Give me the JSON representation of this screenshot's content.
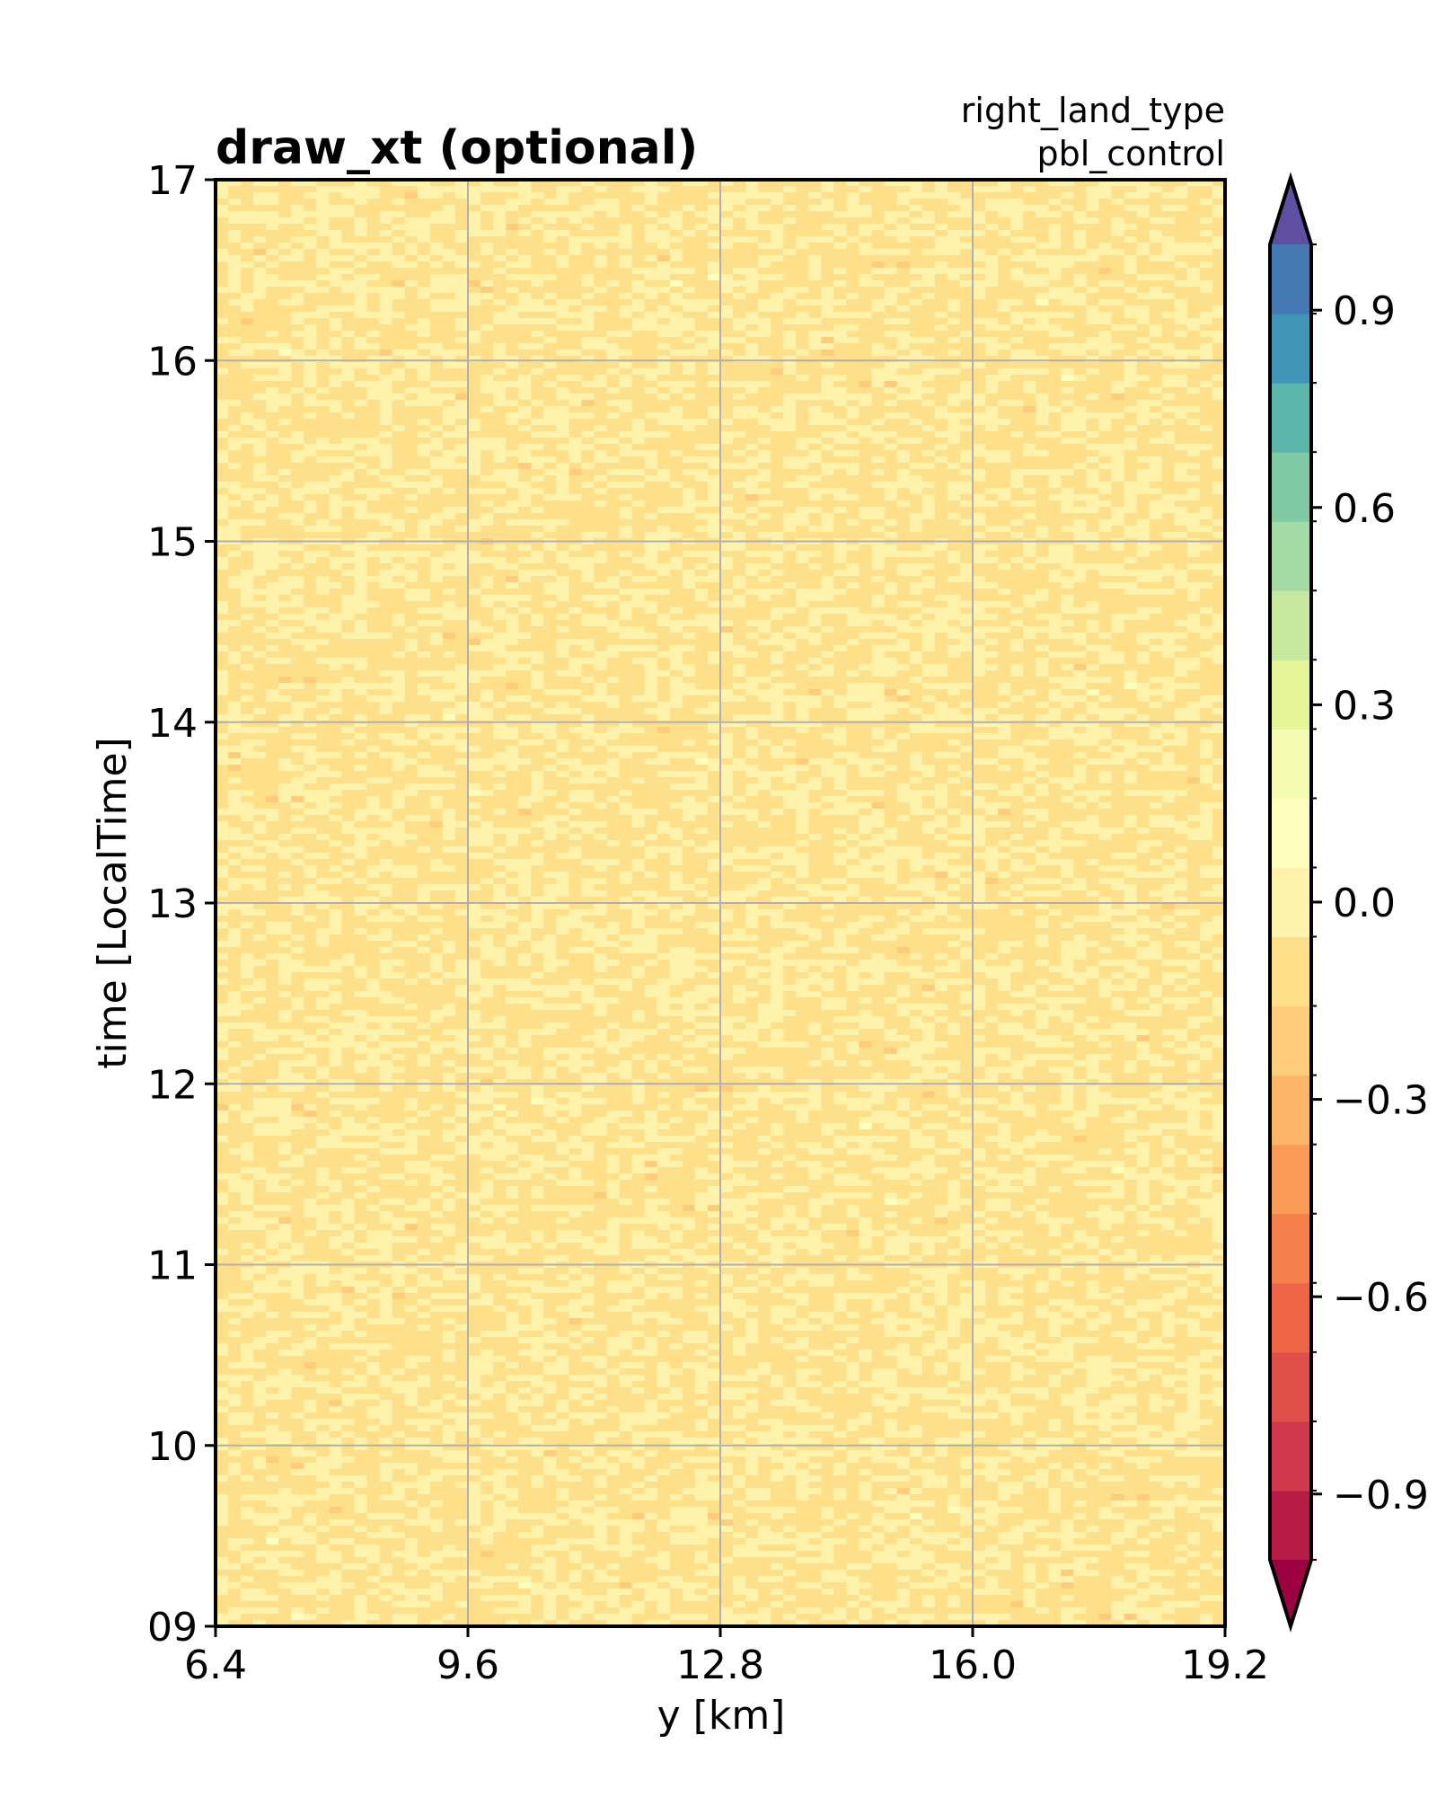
{
  "chart_data": {
    "type": "heatmap",
    "title": "draw_xt (optional)",
    "subtitle_lines": [
      "right_land_type",
      "pbl_control"
    ],
    "xlabel": "y [km]",
    "ylabel": "time [LocalTime]",
    "xlim": [
      6.4,
      19.2
    ],
    "ylim": [
      9,
      17
    ],
    "x_ticks": [
      "6.4",
      "9.6",
      "12.8",
      "16.0",
      "19.2"
    ],
    "x_tick_values": [
      6.4,
      9.6,
      12.8,
      16.0,
      19.2
    ],
    "y_ticks": [
      "09",
      "10",
      "11",
      "12",
      "13",
      "14",
      "15",
      "16",
      "17"
    ],
    "y_tick_values": [
      9,
      10,
      11,
      12,
      13,
      14,
      15,
      16,
      17
    ],
    "grid": true,
    "grid_color": "#b0b0b0",
    "field_description_range": [
      -0.5,
      0.5
    ],
    "colorbar": {
      "colormap": "Spectral",
      "vmin": -1.0,
      "vmax": 1.0,
      "levels": 20,
      "extend": "both",
      "ticks": [
        "0.9",
        "0.6",
        "0.3",
        "0.0",
        "−0.3",
        "−0.6",
        "−0.9"
      ],
      "tick_values": [
        0.9,
        0.6,
        0.3,
        0.0,
        -0.3,
        -0.6,
        -0.9
      ],
      "colors": [
        "#9e0142",
        "#b71c47",
        "#cf384d",
        "#e04f4a",
        "#ee6545",
        "#f67f4b",
        "#fa9b58",
        "#fdb567",
        "#fecc7b",
        "#fee08b",
        "#fff2aa",
        "#fefebd",
        "#f6fbb2",
        "#e6f598",
        "#c6e89f",
        "#a4daa4",
        "#7fc9a5",
        "#5bb6a9",
        "#3f96b7",
        "#4478b2",
        "#5e4fa2"
      ]
    }
  }
}
